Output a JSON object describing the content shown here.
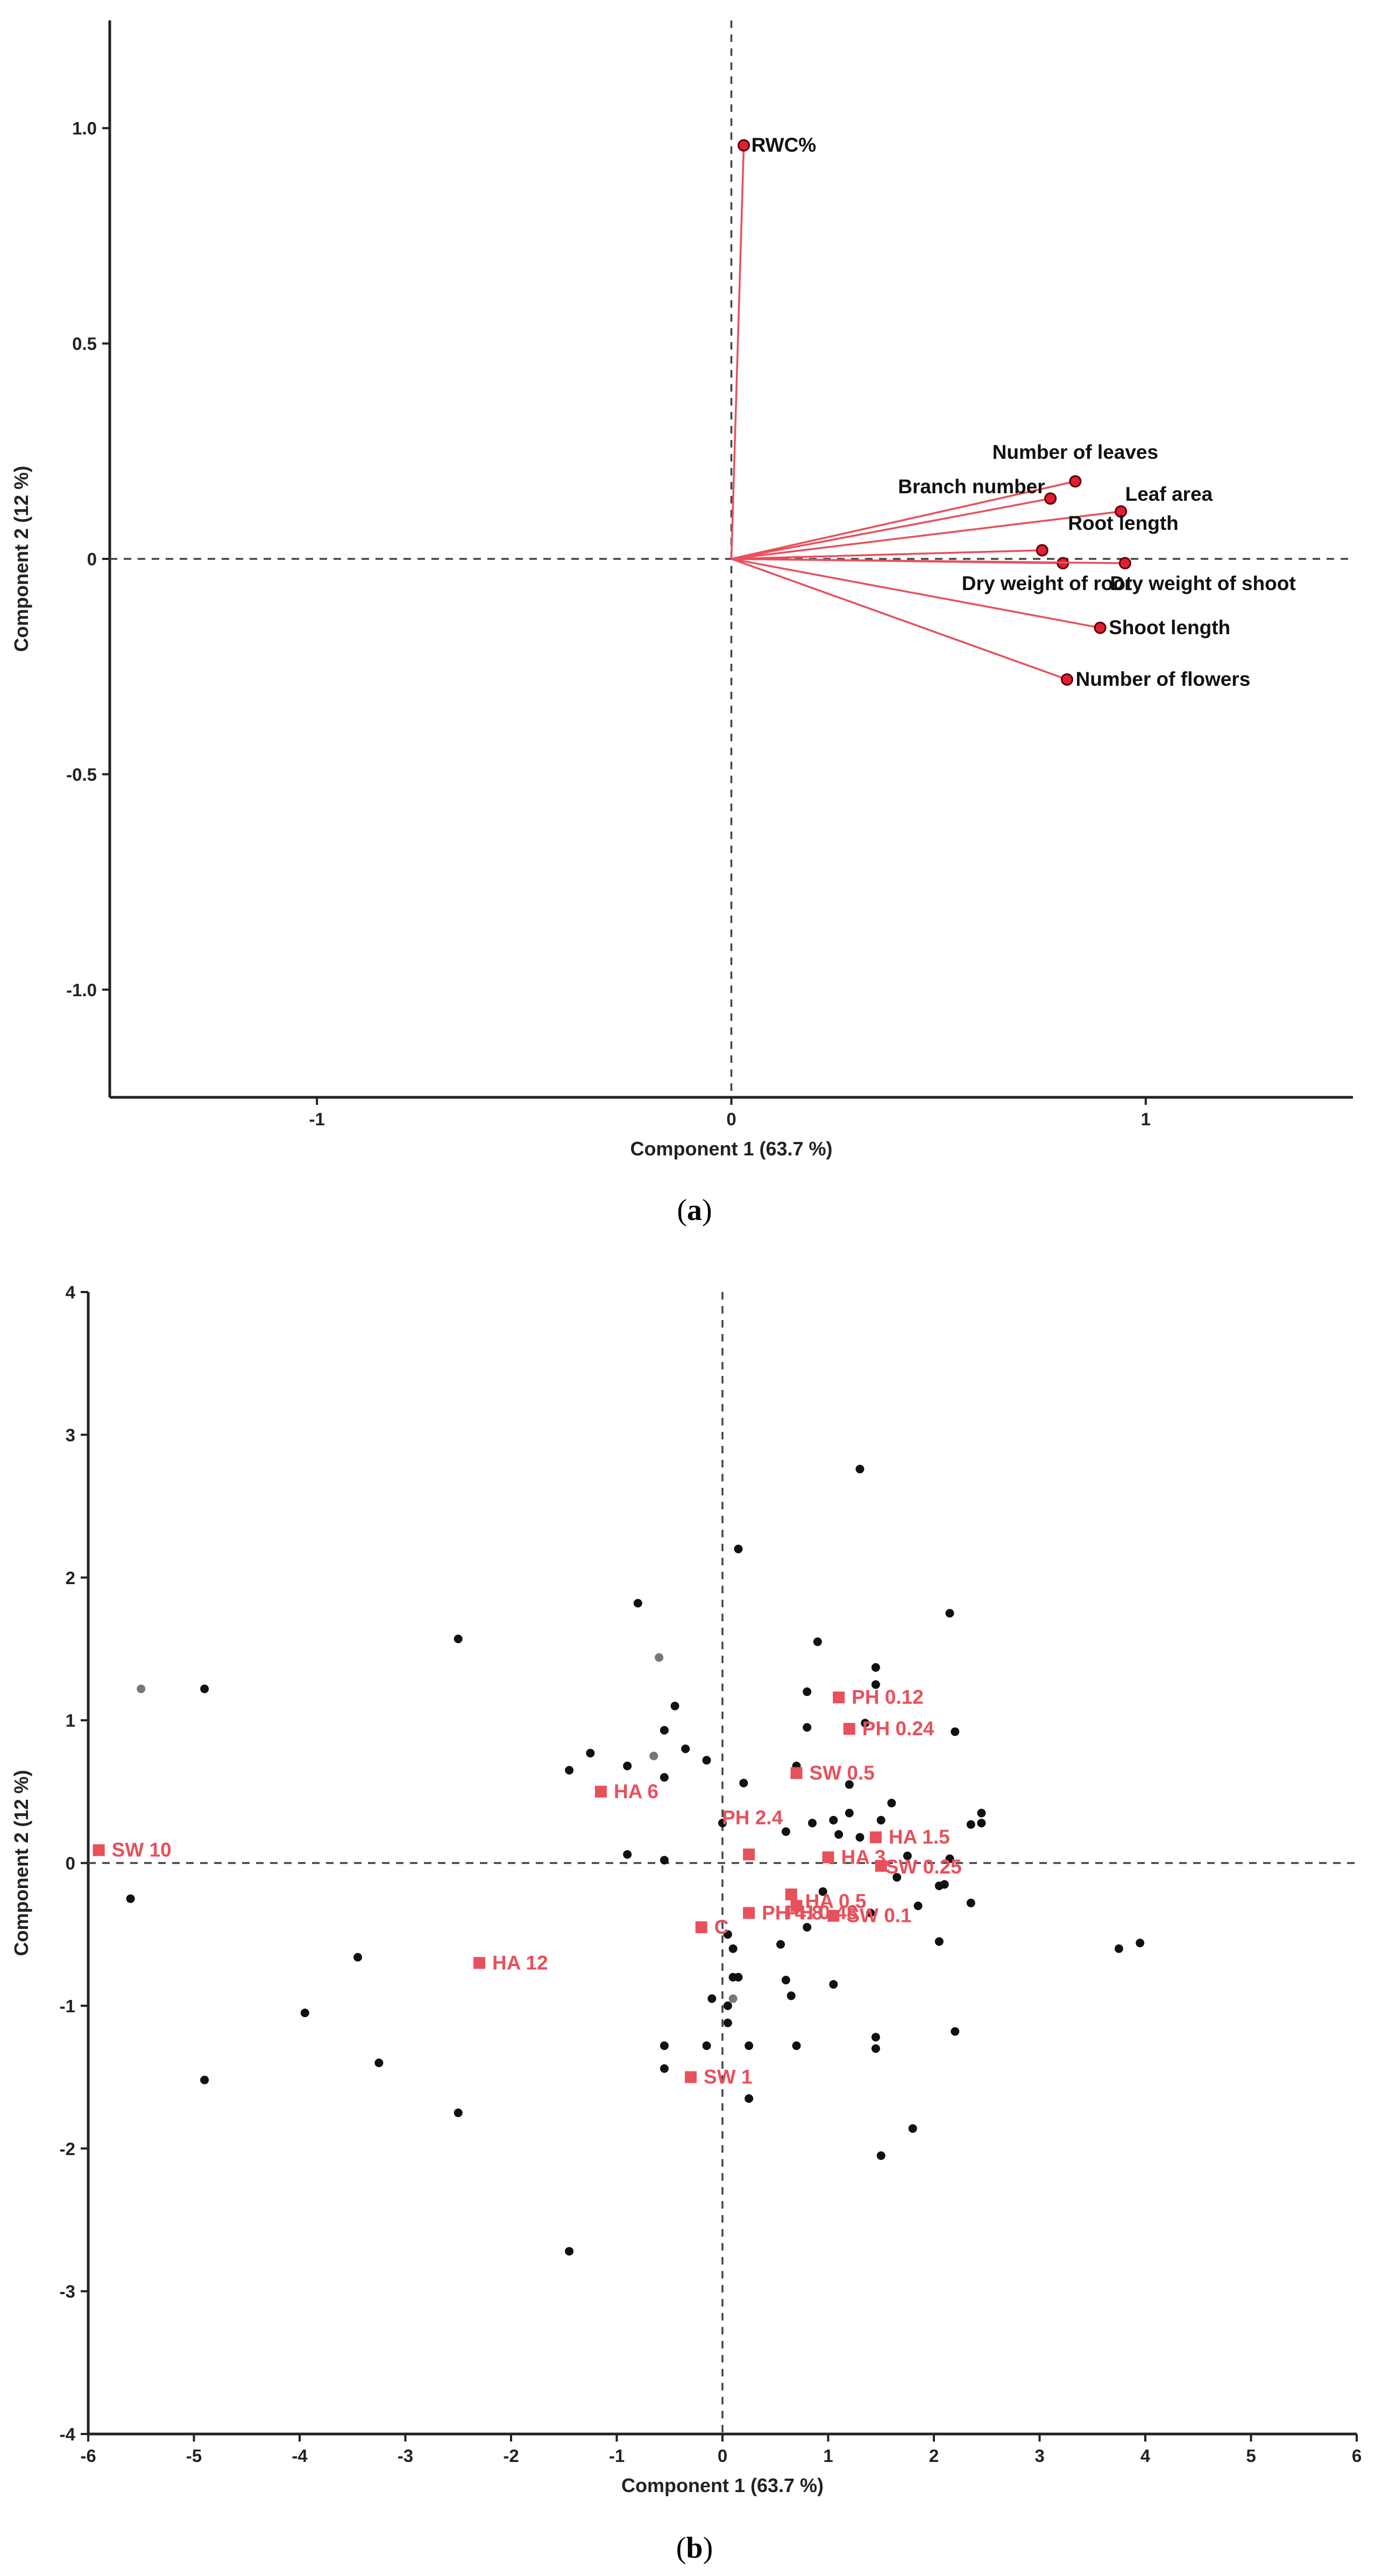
{
  "colors": {
    "accent": "#e8505b",
    "marker": "#e02030",
    "dots": "#111111",
    "gray_dots": "#777777",
    "axis": "#222222"
  },
  "panel_labels": {
    "a": "a",
    "b": "b"
  },
  "chart_data": [
    {
      "type": "scatter",
      "subtype": "loadings-biplot",
      "xlabel": "Component 1 (63.7 %)",
      "ylabel": "Component 2 (12 %)",
      "xlim": [
        -1.5,
        1.5
      ],
      "ylim": [
        -1.25,
        1.25
      ],
      "xticks": [
        -1,
        0,
        1
      ],
      "yticks": [
        1.0,
        0.5,
        0,
        -0.5,
        -1.0
      ],
      "xtick_labels": [
        "-1",
        "0",
        "1"
      ],
      "ytick_labels": [
        "1.0",
        "0.5",
        "0",
        "-0.5",
        "-1.0"
      ],
      "reference_lines": {
        "x": 0,
        "y": 0,
        "style": "dashed"
      },
      "loadings": [
        {
          "label": "RWC%",
          "x": 0.03,
          "y": 0.96
        },
        {
          "label": "Number of leaves",
          "x": 0.83,
          "y": 0.18
        },
        {
          "label": "Branch number",
          "x": 0.77,
          "y": 0.14
        },
        {
          "label": "Leaf area",
          "x": 0.94,
          "y": 0.11
        },
        {
          "label": "Root length",
          "x": 0.75,
          "y": 0.02
        },
        {
          "label": "Dry weight of root",
          "x": 0.8,
          "y": -0.01
        },
        {
          "label": "Dry weight of shoot",
          "x": 0.95,
          "y": -0.01
        },
        {
          "label": "Shoot length",
          "x": 0.89,
          "y": -0.16
        },
        {
          "label": "Number of flowers",
          "x": 0.81,
          "y": -0.28
        }
      ]
    },
    {
      "type": "scatter",
      "subtype": "scores-plot",
      "xlabel": "Component 1 (63.7 %)",
      "ylabel": "Component 2 (12 %)",
      "xlim": [
        -6,
        6
      ],
      "ylim": [
        -4,
        4
      ],
      "xticks": [
        -6,
        -5,
        -4,
        -3,
        -2,
        -1,
        0,
        1,
        2,
        3,
        4,
        5,
        6
      ],
      "yticks": [
        4,
        3,
        2,
        1,
        0,
        -1,
        -2,
        -3,
        -4
      ],
      "xtick_labels": [
        "-6",
        "-5",
        "-4",
        "-3",
        "-2",
        "-1",
        "0",
        "1",
        "2",
        "3",
        "4",
        "5",
        "6"
      ],
      "ytick_labels": [
        "4",
        "3",
        "2",
        "1",
        "0",
        "-1",
        "-2",
        "-3",
        "-4"
      ],
      "reference_lines": {
        "x": 0,
        "y": 0,
        "style": "dashed"
      },
      "treatments": [
        {
          "label": "PH 0.12",
          "x": 1.1,
          "y": 1.16
        },
        {
          "label": "PH 0.24",
          "x": 1.2,
          "y": 0.94
        },
        {
          "label": "SW 0.5",
          "x": 0.7,
          "y": 0.63
        },
        {
          "label": "HA 6",
          "x": -1.15,
          "y": 0.5
        },
        {
          "label": "SW 10",
          "x": -5.9,
          "y": 0.09
        },
        {
          "label": "PH 2.4",
          "x": 0.25,
          "y": 0.06
        },
        {
          "label": "HA 3",
          "x": 1.0,
          "y": 0.04
        },
        {
          "label": "HA 1.5",
          "x": 1.45,
          "y": 0.18
        },
        {
          "label": "PH 0.48",
          "x": 0.65,
          "y": -0.22
        },
        {
          "label": "SW 0.25",
          "x": 1.5,
          "y": -0.02
        },
        {
          "label": "HA 0.5",
          "x": 0.7,
          "y": -0.3
        },
        {
          "label": "PH 4.8",
          "x": 0.25,
          "y": -0.35
        },
        {
          "label": "SW 0.1",
          "x": 1.05,
          "y": -0.37
        },
        {
          "label": "C",
          "x": -0.2,
          "y": -0.45
        },
        {
          "label": "HA 12",
          "x": -2.3,
          "y": -0.7
        },
        {
          "label": "SW 1",
          "x": -0.3,
          "y": -1.5
        }
      ],
      "observations": [
        [
          -5.6,
          -0.25
        ],
        [
          -4.9,
          1.22
        ],
        [
          -4.9,
          -1.52
        ],
        [
          -3.95,
          -1.05
        ],
        [
          -3.45,
          -0.66
        ],
        [
          -3.25,
          -1.4
        ],
        [
          -2.5,
          1.57
        ],
        [
          -2.5,
          -1.75
        ],
        [
          -1.45,
          0.65
        ],
        [
          -1.45,
          -2.72
        ],
        [
          -1.25,
          0.77
        ],
        [
          -0.9,
          0.68
        ],
        [
          -0.9,
          0.06
        ],
        [
          -0.8,
          1.82
        ],
        [
          -0.55,
          0.93
        ],
        [
          -0.55,
          0.6
        ],
        [
          -0.55,
          0.02
        ],
        [
          -0.55,
          -1.28
        ],
        [
          -0.55,
          -1.44
        ],
        [
          -0.45,
          1.1
        ],
        [
          -0.35,
          0.8
        ],
        [
          -0.15,
          0.72
        ],
        [
          -0.15,
          -1.28
        ],
        [
          -0.1,
          -0.95
        ],
        [
          0.0,
          0.28
        ],
        [
          0.05,
          -0.5
        ],
        [
          0.05,
          -1.0
        ],
        [
          0.05,
          -1.12
        ],
        [
          0.1,
          -0.8
        ],
        [
          0.1,
          -0.6
        ],
        [
          0.15,
          2.2
        ],
        [
          0.15,
          -0.8
        ],
        [
          0.2,
          0.56
        ],
        [
          0.25,
          -1.28
        ],
        [
          0.25,
          -1.65
        ],
        [
          0.55,
          -0.57
        ],
        [
          0.6,
          -0.82
        ],
        [
          0.6,
          0.22
        ],
        [
          0.65,
          -0.93
        ],
        [
          0.7,
          0.68
        ],
        [
          0.7,
          -1.28
        ],
        [
          0.8,
          0.95
        ],
        [
          0.8,
          1.2
        ],
        [
          0.8,
          -0.45
        ],
        [
          0.85,
          0.28
        ],
        [
          0.9,
          1.55
        ],
        [
          0.95,
          -0.2
        ],
        [
          1.05,
          0.3
        ],
        [
          1.05,
          -0.85
        ],
        [
          1.1,
          0.2
        ],
        [
          1.2,
          0.55
        ],
        [
          1.2,
          0.35
        ],
        [
          1.3,
          0.18
        ],
        [
          1.3,
          2.76
        ],
        [
          1.35,
          0.98
        ],
        [
          1.4,
          -0.35
        ],
        [
          1.45,
          1.37
        ],
        [
          1.45,
          1.25
        ],
        [
          1.45,
          -1.22
        ],
        [
          1.45,
          -1.3
        ],
        [
          1.5,
          0.3
        ],
        [
          1.5,
          -2.05
        ],
        [
          1.6,
          0.42
        ],
        [
          1.65,
          -0.1
        ],
        [
          1.75,
          0.05
        ],
        [
          1.8,
          -1.86
        ],
        [
          1.85,
          -0.3
        ],
        [
          2.05,
          -0.16
        ],
        [
          2.05,
          -0.55
        ],
        [
          2.1,
          -0.15
        ],
        [
          2.15,
          1.75
        ],
        [
          2.15,
          0.03
        ],
        [
          2.2,
          0.92
        ],
        [
          2.2,
          -1.18
        ],
        [
          2.35,
          0.27
        ],
        [
          2.35,
          -0.28
        ],
        [
          2.45,
          0.35
        ],
        [
          2.45,
          0.28
        ],
        [
          3.75,
          -0.6
        ],
        [
          3.95,
          -0.56
        ]
      ],
      "gray_observations": [
        [
          -5.5,
          1.22
        ],
        [
          -0.6,
          1.44
        ],
        [
          -0.65,
          0.75
        ],
        [
          0.1,
          -0.95
        ]
      ]
    }
  ]
}
